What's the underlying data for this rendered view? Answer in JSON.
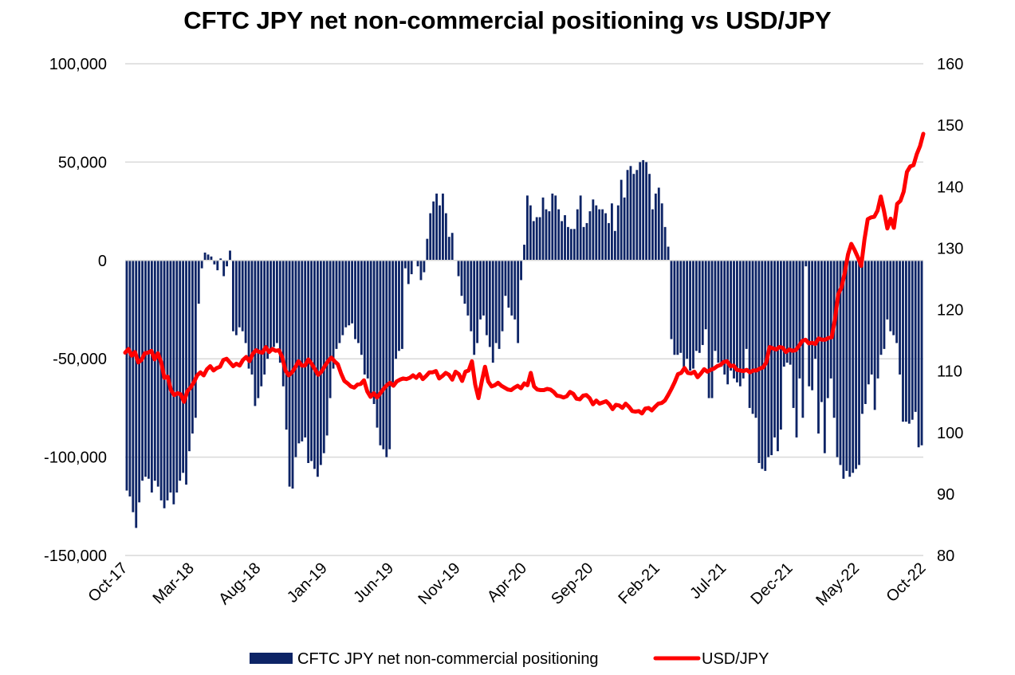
{
  "chart_data": {
    "type": "bar+line",
    "title": "CFTC JPY net non-commercial positioning vs USD/JPY",
    "left_axis": {
      "ylim": [
        -150000,
        100000
      ],
      "ticks": [
        "100,000",
        "50,000",
        "0",
        "-50,000",
        "-100,000",
        "-150,000"
      ],
      "tick_values": [
        100000,
        50000,
        0,
        -50000,
        -100000,
        -150000
      ]
    },
    "right_axis": {
      "ylim": [
        80,
        160
      ],
      "ticks": [
        "160",
        "150",
        "140",
        "130",
        "120",
        "110",
        "100",
        "90",
        "80"
      ],
      "tick_values": [
        160,
        150,
        140,
        130,
        120,
        110,
        100,
        90,
        80
      ]
    },
    "x_tick_labels": [
      "Oct-17",
      "Mar-18",
      "Aug-18",
      "Jan-19",
      "Jun-19",
      "Nov-19",
      "Apr-20",
      "Sep-20",
      "Feb-21",
      "Jul-21",
      "Dec-21",
      "May-22",
      "Oct-22"
    ],
    "grid": "horizontal",
    "legend_position": "bottom",
    "series": [
      {
        "name": "CFTC JPY net non-commercial positioning",
        "kind": "bar",
        "axis": "left",
        "color": "#0d2466",
        "values": [
          -117000,
          -120000,
          -128000,
          -136000,
          -123000,
          -112000,
          -110000,
          -111000,
          -118000,
          -112000,
          -115000,
          -122000,
          -126000,
          -122000,
          -118000,
          -124000,
          -118000,
          -112000,
          -108000,
          -114000,
          -97000,
          -88000,
          -80000,
          -22000,
          -4000,
          4000,
          3000,
          2000,
          -2000,
          -5000,
          1000,
          -8000,
          -3000,
          5000,
          -36000,
          -38000,
          -34000,
          -36000,
          -42000,
          -55000,
          -58000,
          -74000,
          -70000,
          -64000,
          -58000,
          -50000,
          -46000,
          -44000,
          -42000,
          -52000,
          -64000,
          -86000,
          -115000,
          -116000,
          -100000,
          -93000,
          -92000,
          -90000,
          -103000,
          -102000,
          -106000,
          -110000,
          -104000,
          -98000,
          -89000,
          -70000,
          -55000,
          -45000,
          -42000,
          -38000,
          -34000,
          -33000,
          -32000,
          -40000,
          -42000,
          -48000,
          -58000,
          -60000,
          -70000,
          -73000,
          -85000,
          -94000,
          -96000,
          -100000,
          -96000,
          -62000,
          -50000,
          -46000,
          -45000,
          -4000,
          -12000,
          -7000,
          0,
          -3000,
          -10000,
          -6000,
          11000,
          24000,
          30000,
          34000,
          28000,
          34000,
          24000,
          12000,
          14000,
          0,
          -8000,
          -18000,
          -22000,
          -28000,
          -36000,
          -48000,
          -42000,
          -30000,
          -28000,
          -38000,
          -44000,
          -52000,
          -42000,
          -45000,
          -36000,
          -18000,
          -24000,
          -28000,
          -30000,
          -42000,
          -10000,
          8000,
          33000,
          28000,
          20000,
          22000,
          22000,
          32000,
          26000,
          25000,
          34000,
          33000,
          26000,
          20000,
          23000,
          17000,
          16000,
          16000,
          26000,
          33000,
          17000,
          19000,
          25000,
          31000,
          28000,
          26000,
          26000,
          24000,
          19000,
          29000,
          15000,
          28000,
          41000,
          32000,
          46000,
          48000,
          44000,
          46000,
          50000,
          51000,
          50000,
          44000,
          26000,
          34000,
          37000,
          29000,
          17000,
          7000,
          -40000,
          -48000,
          -48000,
          -47000,
          -55000,
          -50000,
          -56000,
          -55000,
          -46000,
          -47000,
          -43000,
          -35000,
          -70000,
          -70000,
          -46000,
          -52000,
          -54000,
          -58000,
          -63000,
          -56000,
          -60000,
          -62000,
          -64000,
          -60000,
          -45000,
          -75000,
          -78000,
          -80000,
          -103000,
          -106000,
          -107000,
          -100000,
          -99000,
          -90000,
          -97000,
          -86000,
          -54000,
          -52000,
          -53000,
          -75000,
          -90000,
          -60000,
          -80000,
          -3000,
          -64000,
          -66000,
          -50000,
          -88000,
          -72000,
          -98000,
          -70000,
          -60000,
          -80000,
          -100000,
          -104000,
          -111000,
          -107000,
          -110000,
          -108000,
          -106000,
          -104000,
          -78000,
          -73000,
          -63000,
          -58000,
          -76000,
          -60000,
          -48000,
          -45000,
          -30000,
          -36000,
          -38000,
          -42000,
          -58000,
          -82000,
          -82000,
          -83000,
          -81000,
          -77000,
          -95000,
          -94000
        ]
      },
      {
        "name": "USD/JPY",
        "kind": "line",
        "axis": "right",
        "color": "#ff0000",
        "values": [
          113,
          113.6,
          112.5,
          113.1,
          111.4,
          111.8,
          112.9,
          113.0,
          113.3,
          111.9,
          112.9,
          111.5,
          108.9,
          109.1,
          106.9,
          106.1,
          106.4,
          106.2,
          105,
          106.7,
          107.3,
          108.2,
          109.3,
          109.8,
          109.3,
          110.3,
          110.8,
          110.1,
          110.5,
          110.7,
          111.8,
          112.0,
          111.4,
          110.8,
          111.2,
          110.9,
          111.8,
          112.3,
          111.6,
          112.8,
          113.4,
          113.1,
          113.0,
          113.9,
          113.1,
          113.6,
          113.3,
          113.4,
          112.3,
          110.1,
          109.3,
          109.8,
          110.6,
          111.6,
          110.9,
          110.9,
          111.9,
          111.2,
          110.3,
          109.4,
          109.9,
          110.8,
          111.6,
          112.2,
          111.6,
          111.1,
          109.6,
          108.4,
          108.0,
          107.5,
          107.3,
          107.8,
          107.9,
          108.5,
          106.7,
          105.8,
          106.4,
          105.7,
          106.4,
          107.1,
          107.7,
          108.1,
          107.6,
          108.3,
          108.6,
          108.8,
          108.7,
          108.9,
          109.3,
          108.9,
          109.5,
          108.7,
          109.2,
          109.8,
          109.8,
          110.0,
          108.8,
          109.2,
          109.7,
          109.4,
          108.6,
          109.9,
          109.5,
          108.4,
          109.9,
          110.1,
          111.6,
          107.8,
          105.6,
          108.3,
          110.7,
          108.3,
          107.5,
          107.7,
          108.1,
          107.6,
          107.3,
          107.0,
          106.9,
          107.3,
          107.6,
          107.2,
          108.0,
          107.7,
          109.7,
          107.5,
          107.0,
          106.9,
          106.9,
          107.1,
          107.0,
          106.6,
          106.0,
          105.9,
          105.7,
          105.9,
          106.6,
          106.3,
          105.5,
          105.4,
          106.0,
          106.1,
          105.6,
          104.6,
          105.2,
          104.7,
          104.9,
          105.1,
          104.6,
          103.8,
          104.5,
          104.4,
          104.0,
          104.7,
          104.2,
          103.5,
          103.4,
          103.5,
          103.1,
          103.9,
          104.0,
          103.6,
          104.2,
          104.7,
          104.8,
          105.2,
          106.1,
          107.1,
          108.2,
          109.5,
          109.7,
          110.5,
          109.7,
          109.6,
          109.9,
          109.0,
          109.6,
          110.3,
          109.9,
          110.2,
          110.4,
          110.8,
          111.0,
          111.5,
          111.6,
          110.8,
          110.9,
          110.2,
          110.1,
          110.0,
          110.2,
          109.8,
          110.1,
          110.1,
          110.4,
          110.6,
          111.4,
          113.9,
          113.7,
          113.5,
          113.9,
          113.8,
          113.1,
          113.5,
          113.3,
          113.4,
          114.1,
          114.9,
          115.1,
          114.5,
          114.6,
          114.4,
          115.3,
          115.1,
          115.1,
          115.4,
          115.5,
          118.4,
          122.5,
          123.6,
          126.0,
          129.0,
          130.7,
          129.7,
          128.5,
          127.1,
          131.4,
          134.7,
          135.0,
          135.1,
          136.1,
          138.4,
          136.0,
          133.2,
          134.8,
          133.3,
          137.2,
          137.7,
          139.2,
          142.4,
          143.3,
          143.5,
          145.3,
          146.6,
          148.6
        ]
      }
    ]
  }
}
